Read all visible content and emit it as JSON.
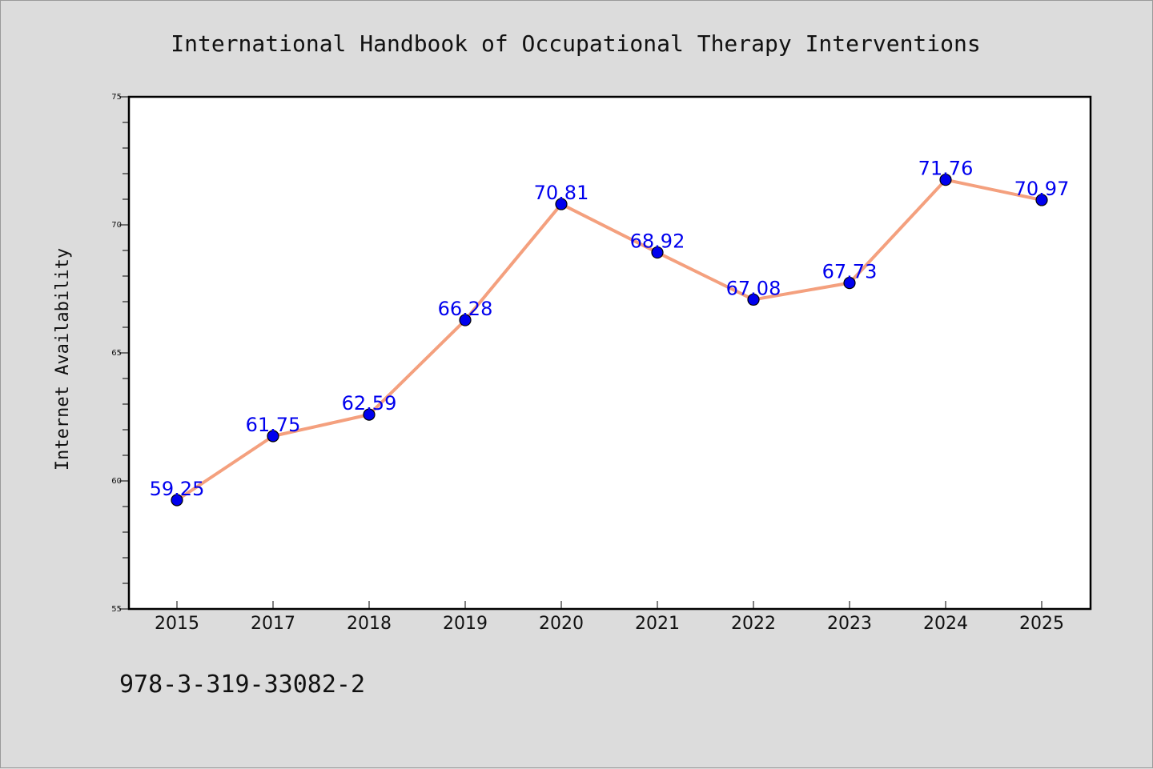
{
  "footer": {
    "isbn": "978-3-319-33082-2"
  },
  "colors": {
    "background": "#dcdcdc",
    "plot_bg": "#ffffff",
    "line": "#f4a07e",
    "marker": "#0000ee",
    "labels": "#0000ee"
  },
  "chart_data": {
    "type": "line",
    "title": "International Handbook of Occupational Therapy Interventions",
    "xlabel": "",
    "ylabel": "Internet Availability",
    "categories": [
      "2015",
      "2017",
      "2018",
      "2019",
      "2020",
      "2021",
      "2022",
      "2023",
      "2024",
      "2025"
    ],
    "series": [
      {
        "values": [
          59.25,
          61.75,
          62.59,
          66.28,
          70.81,
          68.92,
          67.08,
          67.73,
          71.76,
          70.97
        ]
      }
    ],
    "data_labels": [
      "59.25",
      "61.75",
      "62.59",
      "66.28",
      "70.81",
      "68.92",
      "67.08",
      "67.73",
      "71.76",
      "70.97"
    ],
    "ylim": [
      55,
      75
    ],
    "yticks": [
      "55",
      "60",
      "65",
      "70",
      "75"
    ],
    "grid": false,
    "legend": "none"
  }
}
